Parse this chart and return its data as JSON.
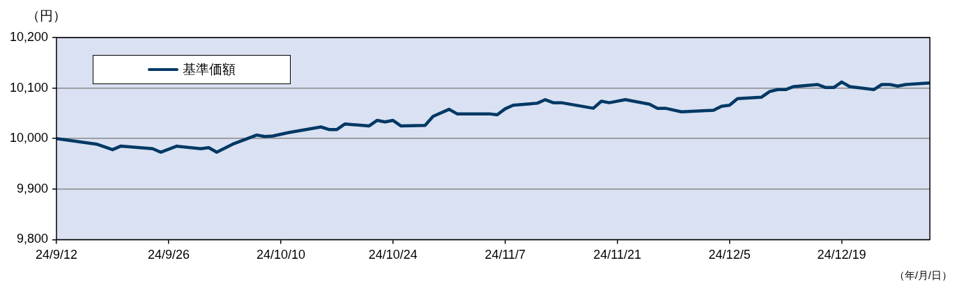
{
  "chart_data": {
    "type": "line",
    "ylabel": "（円）",
    "xlabel": "（年/月/日）",
    "x": [
      "--09-12",
      "--09-17",
      "--09-19",
      "--09-20",
      "--09-24",
      "--09-25",
      "--09-27",
      "--09-30",
      "--10-01",
      "--10-02",
      "--10-04",
      "--10-07",
      "--10-08",
      "--10-09",
      "--10-11",
      "--10-15",
      "--10-16",
      "--10-17",
      "--10-18",
      "--10-21",
      "--10-22",
      "--10-23",
      "--10-24",
      "--10-25",
      "--10-28",
      "--10-29",
      "--10-31",
      "--11-01",
      "--11-05",
      "--11-06",
      "--11-07",
      "--11-08",
      "--11-11",
      "--11-12",
      "--11-13",
      "--11-14",
      "--11-18",
      "--11-19",
      "--11-20",
      "--11-22",
      "--11-25",
      "--11-26",
      "--11-27",
      "--11-29",
      "--12-03",
      "--12-04",
      "--12-05",
      "--12-06",
      "--12-09",
      "--12-10",
      "--12-11",
      "--12-12",
      "--12-13",
      "--12-16",
      "--12-17",
      "--12-18",
      "--12-19",
      "--12-20",
      "--12-23",
      "--12-24",
      "--12-25",
      "--12-26",
      "--12-27",
      "--12-30"
    ],
    "series": [
      {
        "name": "基準価額",
        "color": "#003864",
        "values": [
          10000,
          9989,
          9978,
          9985,
          9980,
          9973,
          9985,
          9980,
          9982,
          9973,
          9989,
          10007,
          10004,
          10005,
          10012,
          10023,
          10018,
          10018,
          10029,
          10025,
          10036,
          10033,
          10036,
          10025,
          10026,
          10044,
          10058,
          10049,
          10049,
          10047,
          10059,
          10066,
          10070,
          10077,
          10071,
          10071,
          10060,
          10074,
          10071,
          10077,
          10068,
          10060,
          10060,
          10053,
          10056,
          10064,
          10066,
          10079,
          10082,
          10093,
          10097,
          10097,
          10103,
          10107,
          10101,
          10101,
          10112,
          10103,
          10097,
          10107,
          10107,
          10104,
          10107,
          10110
        ]
      }
    ],
    "xlim": [
      "--09-12",
      "--12-30"
    ],
    "xticks": [
      {
        "value": "--09-12",
        "label": "24/9/12"
      },
      {
        "value": "--09-26",
        "label": "24/9/26"
      },
      {
        "value": "--10-10",
        "label": "24/10/10"
      },
      {
        "value": "--10-24",
        "label": "24/10/24"
      },
      {
        "value": "--11-07",
        "label": "24/11/7"
      },
      {
        "value": "--11-21",
        "label": "24/11/21"
      },
      {
        "value": "--12-05",
        "label": "24/12/5"
      },
      {
        "value": "--12-19",
        "label": "24/12/19"
      }
    ],
    "ylim": [
      9800,
      10200
    ],
    "yticks": [
      {
        "value": 9800,
        "label": "9,800"
      },
      {
        "value": 9900,
        "label": "9,900"
      },
      {
        "value": 10000,
        "label": "10,000"
      },
      {
        "value": 10100,
        "label": "10,100"
      },
      {
        "value": 10200,
        "label": "10,200"
      }
    ],
    "grid": "y",
    "legend": "top left",
    "marker": "none",
    "line_style": "solid"
  }
}
